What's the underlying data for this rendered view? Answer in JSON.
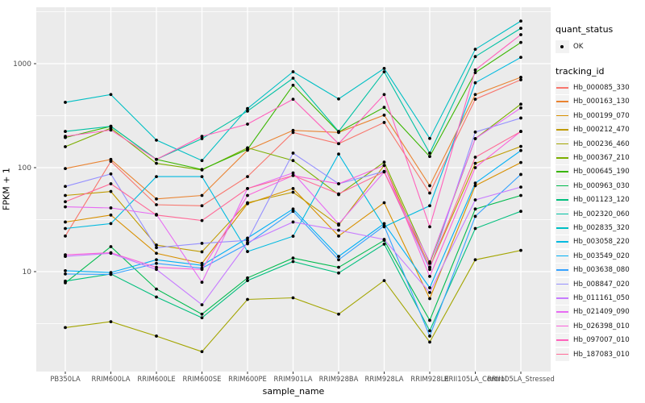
{
  "legend": {
    "quant_status_title": "quant_status",
    "ok_label": "OK",
    "tracking_id_title": "tracking_id",
    "point_color": "#000000"
  },
  "chart_data": {
    "type": "line",
    "title": "",
    "xlabel": "sample_name",
    "ylabel": "FPKM + 1",
    "scale": "log10",
    "ylim": [
      1.5,
      3200
    ],
    "grid": "white major+minor horizontal, white major vertical on gray panel",
    "legend_position": "right",
    "panel_bg": "#EBEBEB",
    "grid_color": "#FFFFFF",
    "tick_text_color": "#4D4D4D",
    "point_color": "#000000",
    "y_ticks": [
      {
        "label": "10",
        "value": 10
      },
      {
        "label": "100",
        "value": 100
      },
      {
        "label": "1000",
        "value": 1000
      }
    ],
    "y_minor": [
      3.162,
      31.62,
      316.2,
      3162
    ],
    "categories": [
      "PB350LA",
      "RRIM600LA",
      "RRIM600LE",
      "RRIM600SE",
      "RRIM600PE",
      "RRIM901LA",
      "RRIM928BA",
      "RRIM928LA",
      "RRIM928LE",
      "RRII105LA_Control",
      "RRII105LA_Stressed"
    ],
    "series": [
      {
        "name": "Hb_000085_330",
        "color": "#F8766D",
        "values": [
          22,
          115,
          44,
          43,
          82,
          218,
          170,
          272,
          57,
          455,
          700
        ]
      },
      {
        "name": "Hb_000163_130",
        "color": "#EA8331",
        "values": [
          98,
          120,
          50,
          54,
          147,
          228,
          218,
          320,
          67,
          505,
          740
        ]
      },
      {
        "name": "Hb_000199_070",
        "color": "#D89000",
        "values": [
          30,
          35,
          15,
          12,
          45,
          63,
          22,
          46,
          5.5,
          67,
          112
        ]
      },
      {
        "name": "Hb_000212_470",
        "color": "#C09B00",
        "values": [
          54,
          59,
          18,
          15.5,
          46,
          58,
          28,
          105,
          11,
          110,
          160
        ]
      },
      {
        "name": "Hb_000236_460",
        "color": "#A3A500",
        "values": [
          2.9,
          3.3,
          2.4,
          1.7,
          5.4,
          5.6,
          3.9,
          8.2,
          2.1,
          13,
          16
        ]
      },
      {
        "name": "Hb_000367_210",
        "color": "#7CAE00",
        "values": [
          159,
          240,
          110,
          95,
          155,
          117,
          55,
          113,
          12,
          190,
          408
        ]
      },
      {
        "name": "Hb_000645_190",
        "color": "#39B600",
        "values": [
          195,
          250,
          120,
          96,
          150,
          620,
          220,
          380,
          128,
          820,
          1600
        ]
      },
      {
        "name": "Hb_000963_030",
        "color": "#00BB4E",
        "values": [
          7.8,
          17.4,
          6.8,
          3.9,
          8.7,
          13.5,
          11,
          20,
          3.4,
          40,
          54
        ]
      },
      {
        "name": "Hb_001123_120",
        "color": "#00BF7D",
        "values": [
          8.1,
          9.5,
          5.7,
          3.6,
          8.2,
          12.5,
          9.7,
          18.4,
          2.7,
          26,
          38
        ]
      },
      {
        "name": "Hb_002320_060",
        "color": "#00C1A3",
        "values": [
          223,
          250,
          120,
          190,
          350,
          725,
          223,
          835,
          138,
          1170,
          2190
        ]
      },
      {
        "name": "Hb_002835_320",
        "color": "#00BFC4",
        "values": [
          425,
          505,
          184,
          117,
          370,
          836,
          458,
          900,
          191,
          1375,
          2570
        ]
      },
      {
        "name": "Hb_003058_220",
        "color": "#00BAE0",
        "values": [
          26,
          29,
          82,
          82,
          15.6,
          21.9,
          135,
          27,
          43,
          655,
          1150
        ]
      },
      {
        "name": "Hb_003549_020",
        "color": "#00B0F6",
        "values": [
          10.2,
          9.8,
          13,
          11.5,
          21,
          40,
          14,
          29,
          7,
          71,
          146
        ]
      },
      {
        "name": "Hb_003638_080",
        "color": "#35A2FF",
        "values": [
          9.5,
          9.4,
          12,
          10.8,
          18.5,
          38,
          13,
          27.5,
          2.4,
          34,
          86
        ]
      },
      {
        "name": "Hb_008847_020",
        "color": "#9590FF",
        "values": [
          66,
          87,
          17,
          18.7,
          20,
          138,
          70,
          92,
          10.5,
          220,
          300
        ]
      },
      {
        "name": "Hb_011161_050",
        "color": "#C77CFF",
        "values": [
          14,
          15,
          10.5,
          4.8,
          19,
          30,
          25,
          20.4,
          6.3,
          49,
          65
        ]
      },
      {
        "name": "Hb_021409_090",
        "color": "#E76BF3",
        "values": [
          42,
          41,
          35.5,
          7.9,
          63,
          89,
          28.7,
          91,
          12.4,
          190,
          375
        ]
      },
      {
        "name": "Hb_026398_010",
        "color": "#FA62DB",
        "values": [
          14.5,
          15.2,
          11,
          10.5,
          54,
          84,
          70,
          105,
          9,
          100,
          223
        ]
      },
      {
        "name": "Hb_097007_010",
        "color": "#FF62BC",
        "values": [
          200,
          230,
          120,
          200,
          262,
          455,
          170,
          505,
          27,
          870,
          1900
        ]
      },
      {
        "name": "Hb_187083_010",
        "color": "#FF6A98",
        "values": [
          47,
          70,
          35,
          31,
          63,
          84,
          56,
          91,
          11,
          126,
          223
        ]
      }
    ]
  }
}
